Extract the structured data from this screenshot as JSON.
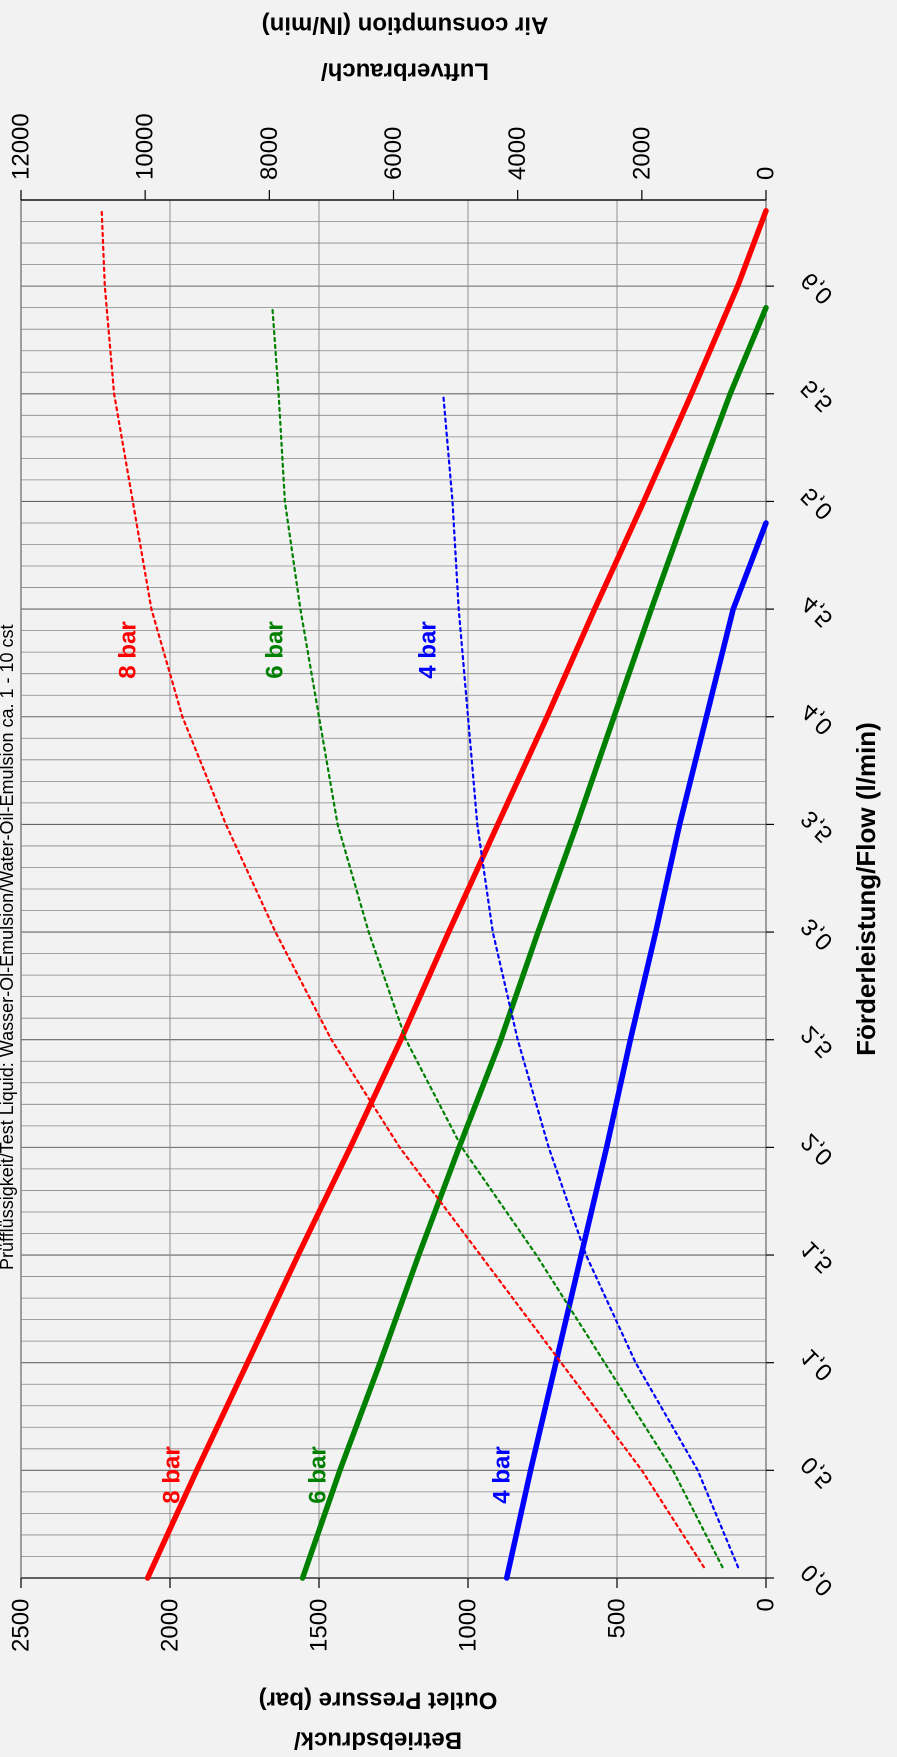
{
  "chart_data": {
    "type": "line",
    "orientation": "rotated 90° clockwise",
    "note": "Prüfflüssigkeit/Test Liquid: Wasser-Öl-Emulsion/Water-Oil-Emulsion ca. 1 - 10 cst",
    "xlabel": "Förderleistung/Flow (l/min)",
    "ylabel_left_line1": "Betriebsdruck/",
    "ylabel_left_line2": "Outlet Pressure (bar)",
    "ylabel_right_line1": "Luftverbrauch/",
    "ylabel_right_line2": "Air consumption (lN/min)",
    "xlim": [
      0,
      6.4
    ],
    "xticks": [
      "0,0",
      "0,5",
      "1,0",
      "1,5",
      "2,0",
      "2,5",
      "3,0",
      "3,5",
      "4,0",
      "4,5",
      "5,0",
      "5,5",
      "6,0"
    ],
    "ylim_left": [
      0,
      2500
    ],
    "yticks_left": [
      "0",
      "500",
      "1000",
      "1500",
      "2000",
      "2500"
    ],
    "ylim_right": [
      0,
      12000
    ],
    "yticks_right": [
      "0",
      "2000",
      "4000",
      "6000",
      "8000",
      "10000",
      "12000"
    ],
    "grid": true,
    "series": [
      {
        "name": "8 bar",
        "color": "#ff0000",
        "axis": "left",
        "style": "solid",
        "x": [
          0.0,
          0.5,
          1.0,
          1.5,
          2.0,
          2.5,
          3.0,
          3.5,
          4.0,
          4.5,
          5.0,
          5.5,
          6.0,
          6.35
        ],
        "values": [
          2075,
          1910,
          1740,
          1570,
          1395,
          1225,
          1065,
          900,
          735,
          575,
          410,
          250,
          95,
          0
        ]
      },
      {
        "name": "6 bar",
        "color": "#008000",
        "axis": "left",
        "style": "solid",
        "x": [
          0.0,
          0.5,
          1.0,
          1.5,
          2.0,
          2.5,
          3.0,
          3.5,
          4.0,
          4.5,
          5.0,
          5.5,
          5.9
        ],
        "values": [
          1555,
          1430,
          1295,
          1165,
          1030,
          890,
          765,
          635,
          510,
          385,
          255,
          120,
          0
        ]
      },
      {
        "name": "4 bar",
        "color": "#0000ff",
        "axis": "left",
        "style": "solid",
        "x": [
          0.0,
          0.5,
          1.0,
          1.5,
          2.0,
          2.5,
          3.0,
          3.5,
          4.0,
          4.5,
          4.9
        ],
        "values": [
          870,
          790,
          705,
          620,
          535,
          455,
          370,
          290,
          200,
          110,
          0
        ]
      },
      {
        "name": "8 bar",
        "color": "#ff0000",
        "axis": "right",
        "style": "dashed",
        "x": [
          0.05,
          0.5,
          1.0,
          1.5,
          2.0,
          2.5,
          3.0,
          3.5,
          4.0,
          4.5,
          5.0,
          5.5,
          6.0,
          6.35
        ],
        "values": [
          1000,
          2000,
          3300,
          4600,
          5900,
          7000,
          7900,
          8700,
          9400,
          9900,
          10200,
          10500,
          10650,
          10700
        ]
      },
      {
        "name": "6 bar",
        "color": "#008000",
        "axis": "right",
        "style": "dashed",
        "x": [
          0.05,
          0.5,
          1.0,
          1.5,
          2.0,
          2.5,
          3.0,
          3.5,
          4.0,
          4.5,
          5.0,
          5.5,
          5.9
        ],
        "values": [
          700,
          1500,
          2600,
          3700,
          4900,
          5800,
          6400,
          6900,
          7200,
          7500,
          7750,
          7850,
          7950
        ]
      },
      {
        "name": "4 bar",
        "color": "#0000ff",
        "axis": "right",
        "style": "dashed",
        "x": [
          0.05,
          0.5,
          1.0,
          1.5,
          2.0,
          2.5,
          3.0,
          3.5,
          4.0,
          4.5,
          5.0,
          5.5
        ],
        "values": [
          450,
          1100,
          2100,
          2900,
          3500,
          4000,
          4400,
          4650,
          4800,
          4950,
          5050,
          5200
        ]
      }
    ],
    "labels_low_flow": [
      {
        "text": "8 bar",
        "color": "#ff0000"
      },
      {
        "text": "6 bar",
        "color": "#008000"
      },
      {
        "text": "4 bar",
        "color": "#0000ff"
      }
    ],
    "labels_high_flow": [
      {
        "text": "8 bar",
        "color": "#ff0000"
      },
      {
        "text": "6 bar",
        "color": "#008000"
      },
      {
        "text": "4 bar",
        "color": "#0000ff"
      }
    ]
  }
}
